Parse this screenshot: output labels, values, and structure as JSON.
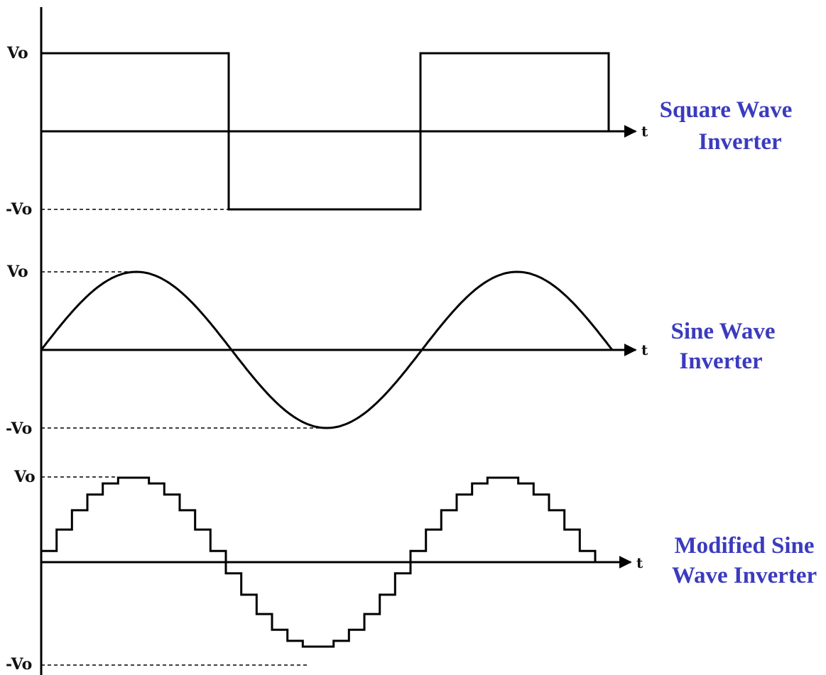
{
  "axis": {
    "t_label": "t"
  },
  "panels": [
    {
      "id": "square",
      "vo_label": "Vo",
      "neg_vo_label": "-Vo",
      "caption_line1": "Square Wave",
      "caption_line2": "Inverter",
      "caption_color": "#3b3bbf"
    },
    {
      "id": "sine",
      "vo_label": "Vo",
      "neg_vo_label": "-Vo",
      "caption_line1": "Sine Wave",
      "caption_line2": "Inverter",
      "caption_color": "#3b3bbf"
    },
    {
      "id": "modified",
      "vo_label": "Vo",
      "neg_vo_label": "-Vo",
      "caption_line1": "Modified Sine",
      "caption_line2": "Wave Inverter",
      "caption_color": "#3b3bbf"
    }
  ]
}
